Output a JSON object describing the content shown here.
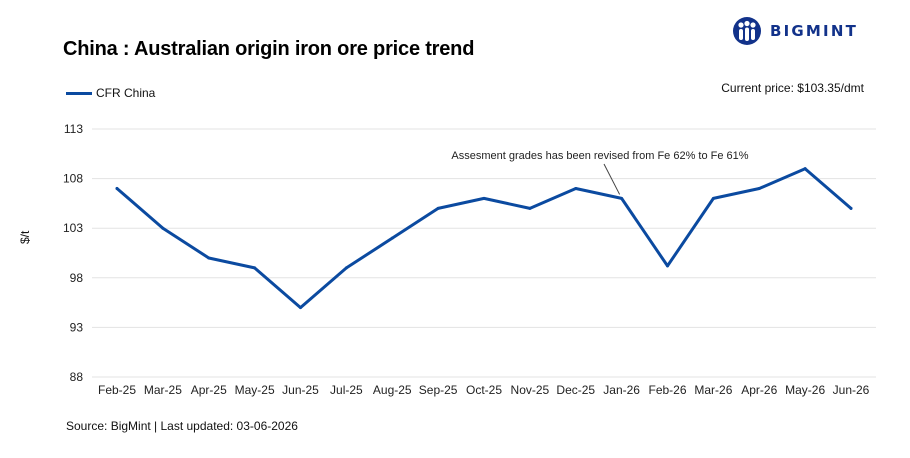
{
  "brand": {
    "name": "BIGMINT",
    "color": "#12328a"
  },
  "current_price": "Current price: $103.35/dmt",
  "source": "Source: BigMint | Last updated: 03-06-2026",
  "chart_data": {
    "type": "line",
    "title": "China : Australian origin iron ore price trend",
    "xlabel": "",
    "ylabel": "$/t",
    "categories": [
      "Feb-25",
      "Mar-25",
      "Apr-25",
      "May-25",
      "Jun-25",
      "Jul-25",
      "Aug-25",
      "Sep-25",
      "Oct-25",
      "Nov-25",
      "Dec-25",
      "Jan-26",
      "Feb-26",
      "Mar-26",
      "Apr-26",
      "May-26",
      "Jun-26"
    ],
    "x": [
      "Feb-25",
      "Mar-25",
      "Apr-25",
      "May-25",
      "Jun-25",
      "Jul-25",
      "Aug-25",
      "Sep-25",
      "Oct-25",
      "Nov-25",
      "Dec-25",
      "Jan-26",
      "Feb-26",
      "Mar-26",
      "Apr-26",
      "May-26",
      "Jun-26"
    ],
    "series": [
      {
        "name": "CFR China",
        "color": "#0b4aa0",
        "values": [
          107,
          103,
          100,
          99,
          95,
          99,
          102,
          105,
          106,
          105,
          107,
          106,
          99.2,
          106,
          107,
          109,
          105
        ]
      }
    ],
    "yticks": [
      88,
      93,
      98,
      103,
      108,
      113
    ],
    "ylim": [
      88,
      113
    ],
    "grid": true,
    "legend": "top-left",
    "annotation": {
      "text": "Assesment grades has been revised from Fe 62% to Fe 61%",
      "x": "Jan-26"
    }
  }
}
